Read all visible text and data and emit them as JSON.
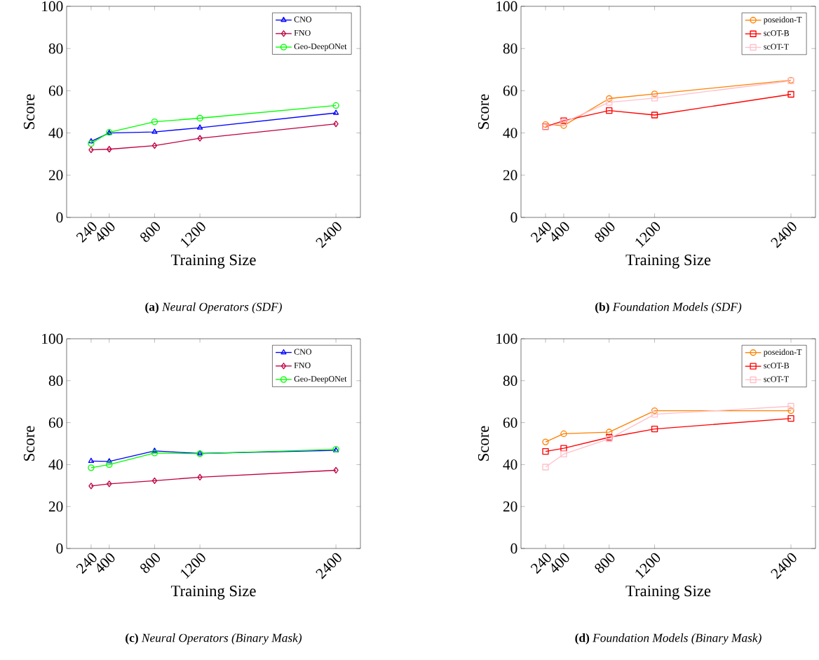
{
  "chart_data": [
    {
      "type": "line",
      "title": "**(a)** *Neural Operators (SDF)*",
      "xlabel": "Training Size",
      "ylabel": "Score",
      "x": [
        240,
        400,
        800,
        1200,
        2400
      ],
      "xlim": [
        24,
        2616
      ],
      "ylim": [
        0,
        100
      ],
      "xticks": [
        240,
        400,
        800,
        1200,
        2400
      ],
      "yticks": [
        0,
        20,
        40,
        60,
        80,
        100
      ],
      "legend": "top right",
      "series": [
        {
          "name": "CNO",
          "color": "#0000ff",
          "marker": "triangle",
          "values": [
            36,
            40,
            40.5,
            42.5,
            49.5
          ]
        },
        {
          "name": "FNO",
          "color": "#bf0040",
          "marker": "diamond",
          "values": [
            32,
            32.3,
            34,
            37.5,
            44.3
          ]
        },
        {
          "name": "Geo-DeepONet",
          "color": "#00ff00",
          "marker": "circle",
          "values": [
            35,
            40.3,
            45.3,
            47,
            53
          ]
        }
      ]
    },
    {
      "type": "line",
      "title": "**(b)** *Foundation Models (SDF)*",
      "xlabel": "Training Size",
      "ylabel": "Score",
      "x": [
        240,
        400,
        800,
        1200,
        2400
      ],
      "xlim": [
        24,
        2616
      ],
      "ylim": [
        0,
        100
      ],
      "xticks": [
        240,
        400,
        800,
        1200,
        2400
      ],
      "yticks": [
        0,
        20,
        40,
        60,
        80,
        100
      ],
      "legend": "top right",
      "series": [
        {
          "name": "poseidon-T",
          "color": "#ff8000",
          "marker": "circle",
          "values": [
            44,
            43.5,
            56.3,
            58.5,
            65
          ]
        },
        {
          "name": "scOT-B",
          "color": "#ff0000",
          "marker": "square",
          "values": [
            43,
            45.8,
            50.6,
            48.5,
            58.3
          ]
        },
        {
          "name": "scOT-T",
          "color": "#ffc0cb",
          "marker": "square",
          "values": [
            42.8,
            45,
            54.5,
            56.5,
            64.7
          ]
        }
      ]
    },
    {
      "type": "line",
      "title": "**(c)** *Neural Operators (Binary Mask)*",
      "xlabel": "Training Size",
      "ylabel": "Score",
      "x": [
        240,
        400,
        800,
        1200,
        2400
      ],
      "xlim": [
        24,
        2616
      ],
      "ylim": [
        0,
        100
      ],
      "xticks": [
        240,
        400,
        800,
        1200,
        2400
      ],
      "yticks": [
        0,
        20,
        40,
        60,
        80,
        100
      ],
      "legend": "top right",
      "series": [
        {
          "name": "CNO",
          "color": "#0000ff",
          "marker": "triangle",
          "values": [
            41.7,
            41.5,
            46.5,
            45.3,
            46.8
          ]
        },
        {
          "name": "FNO",
          "color": "#bf0040",
          "marker": "diamond",
          "values": [
            29.8,
            30.8,
            32.3,
            34,
            37.3
          ]
        },
        {
          "name": "Geo-DeepONet",
          "color": "#00ff00",
          "marker": "circle",
          "values": [
            38.5,
            40,
            45.5,
            45.2,
            47.3
          ]
        }
      ]
    },
    {
      "type": "line",
      "title": "**(d)** *Foundation Models (Binary Mask)*",
      "xlabel": "Training Size",
      "ylabel": "Score",
      "x": [
        240,
        400,
        800,
        1200,
        2400
      ],
      "xlim": [
        24,
        2616
      ],
      "ylim": [
        0,
        100
      ],
      "xticks": [
        240,
        400,
        800,
        1200,
        2400
      ],
      "yticks": [
        0,
        20,
        40,
        60,
        80,
        100
      ],
      "legend": "top right",
      "series": [
        {
          "name": "poseidon-T",
          "color": "#ff8000",
          "marker": "circle",
          "values": [
            50.8,
            54.7,
            55.5,
            65.7,
            65.7
          ]
        },
        {
          "name": "scOT-B",
          "color": "#ff0000",
          "marker": "square",
          "values": [
            46.3,
            47.8,
            53,
            57,
            62
          ]
        },
        {
          "name": "scOT-T",
          "color": "#ffc0cb",
          "marker": "square",
          "values": [
            38.8,
            45,
            52.3,
            64,
            67.8
          ]
        }
      ]
    }
  ]
}
